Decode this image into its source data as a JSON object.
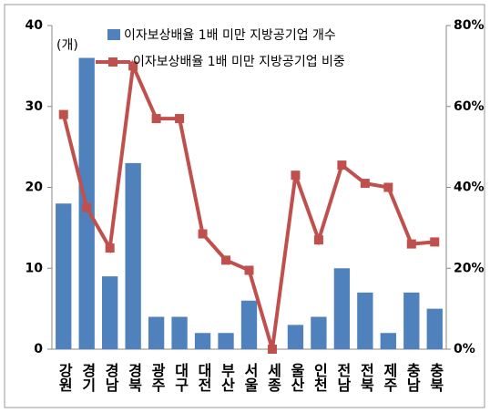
{
  "chart_data": {
    "type": "bar-line",
    "annotation": "(개)",
    "categories": [
      "강원",
      "경기",
      "경남",
      "경북",
      "광주",
      "대구",
      "대전",
      "부산",
      "서울",
      "세종",
      "울산",
      "인천",
      "전남",
      "전북",
      "제주",
      "충남",
      "충북"
    ],
    "series": [
      {
        "name": "이자보상배율 1배 미만 지방공기업 개수",
        "type": "bar",
        "color": "#4f81bd",
        "values": [
          18,
          36,
          9,
          23,
          4,
          4,
          2,
          2,
          6,
          0,
          3,
          4,
          10,
          7,
          2,
          7,
          5
        ]
      },
      {
        "name": "이자보상배율 1배 미만 지방공기업 비중",
        "type": "line",
        "axis": "y2",
        "color": "#c0504d",
        "values": [
          58,
          35,
          25,
          70,
          57,
          57,
          28.5,
          22,
          19.5,
          0,
          43,
          27,
          45.5,
          41,
          40,
          26,
          26.5
        ]
      }
    ],
    "ylim": [
      0,
      40
    ],
    "yticks": [
      0,
      10,
      20,
      30,
      40
    ],
    "y2lim": [
      0,
      80
    ],
    "y2ticks": [
      {
        "value": 0,
        "label": "0%"
      },
      {
        "value": 20,
        "label": "20%"
      },
      {
        "value": 40,
        "label": "40%"
      },
      {
        "value": 60,
        "label": "60%"
      },
      {
        "value": 80,
        "label": "80%"
      }
    ]
  }
}
